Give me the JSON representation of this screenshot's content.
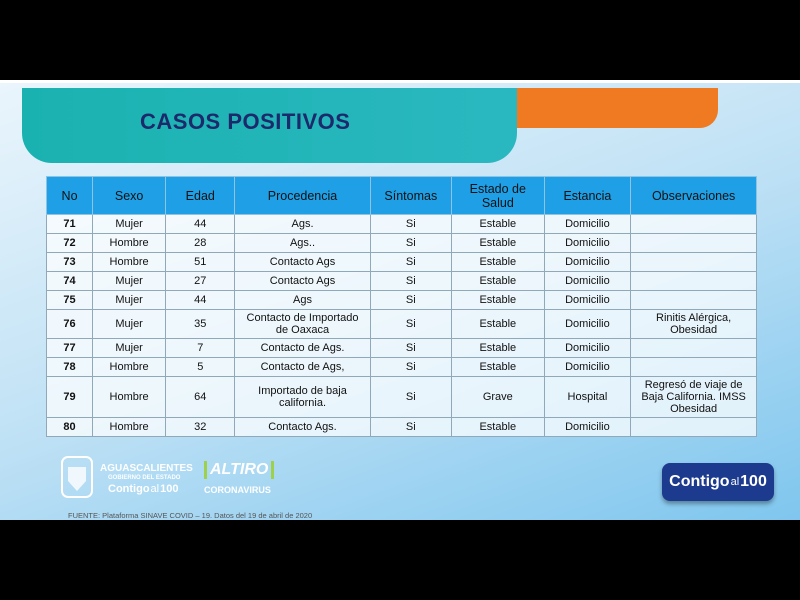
{
  "header": {
    "title": "CASOS POSITIVOS"
  },
  "table": {
    "columns": [
      "No",
      "Sexo",
      "Edad",
      "Procedencia",
      "Síntomas",
      "Estado de Salud",
      "Estancia",
      "Observaciones"
    ],
    "rows": [
      [
        "71",
        "Mujer",
        "44",
        "Ags.",
        "Si",
        "Estable",
        "Domicilio",
        ""
      ],
      [
        "72",
        "Hombre",
        "28",
        "Ags..",
        "Si",
        "Estable",
        "Domicilio",
        ""
      ],
      [
        "73",
        "Hombre",
        "51",
        "Contacto Ags",
        "Si",
        "Estable",
        "Domicilio",
        ""
      ],
      [
        "74",
        "Mujer",
        "27",
        "Contacto Ags",
        "Si",
        "Estable",
        "Domicilio",
        ""
      ],
      [
        "75",
        "Mujer",
        "44",
        "Ags",
        "Si",
        "Estable",
        "Domicilio",
        ""
      ],
      [
        "76",
        "Mujer",
        "35",
        "Contacto de Importado de Oaxaca",
        "Si",
        "Estable",
        "Domicilio",
        "Rinitis Alérgica, Obesidad"
      ],
      [
        "77",
        "Mujer",
        "7",
        "Contacto de Ags.",
        "Si",
        "Estable",
        "Domicilio",
        ""
      ],
      [
        "78",
        "Hombre",
        "5",
        "Contacto de Ags,",
        "Si",
        "Estable",
        "Domicilio",
        ""
      ],
      [
        "79",
        "Hombre",
        "64",
        "Importado de baja california.",
        "Si",
        "Grave",
        "Hospital",
        "Regresó de viaje de Baja California.  IMSS Obesidad"
      ],
      [
        "80",
        "Hombre",
        "32",
        "Contacto Ags.",
        "Si",
        "Estable",
        "Domicilio",
        ""
      ]
    ]
  },
  "footer": {
    "state": "AGUASCALIENTES",
    "state_sub": "GOBIERNO DEL ESTADO",
    "left_slogan": [
      "Contigo",
      "al",
      "100"
    ],
    "campaign": "ALTIRO",
    "campaign_sub": "CORONAVIRUS",
    "right_badge": [
      "Contigo",
      "al",
      "100"
    ],
    "source": "FUENTE: Plataforma SINAVE COVID – 19. Datos del 19 de abril de 2020"
  }
}
